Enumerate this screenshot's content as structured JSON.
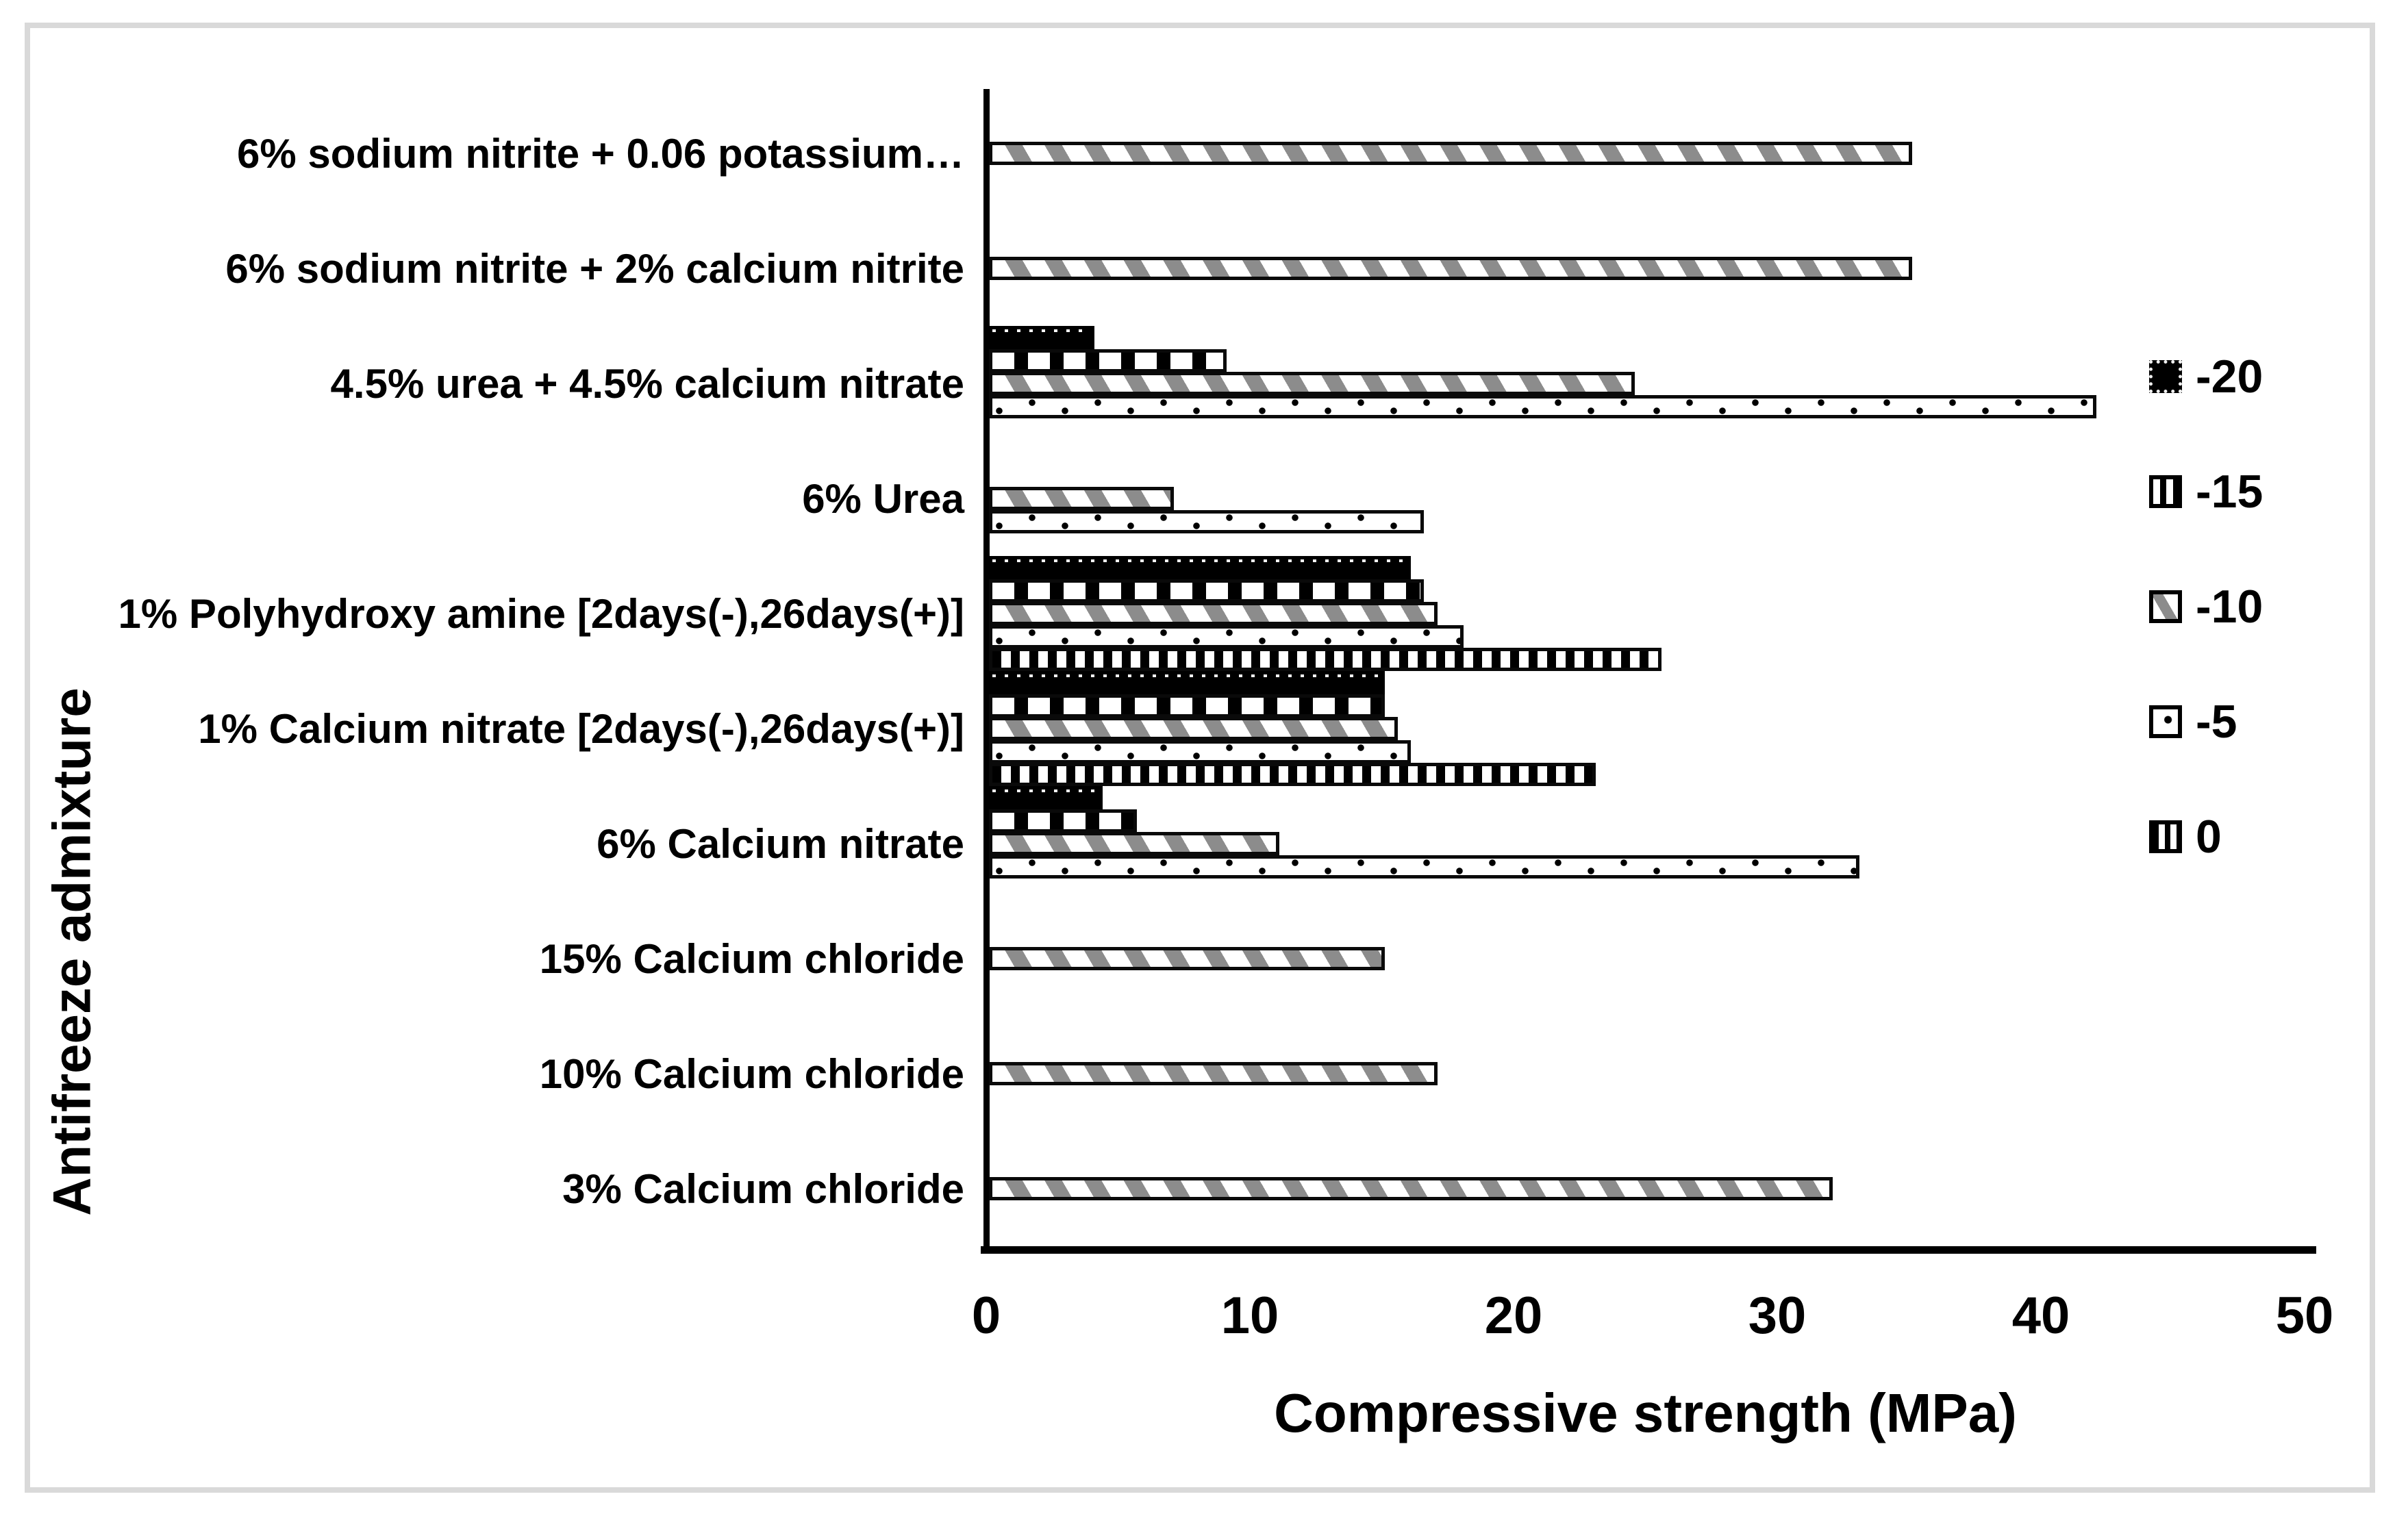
{
  "figure": {
    "background": "#ffffff",
    "border_color": "#d9d9d9",
    "bar_gray": "#8c8c8c",
    "bar_black": "#000000"
  },
  "chart_data": {
    "type": "bar",
    "orientation": "horizontal",
    "title": "",
    "xlabel": "Compressive strength (MPa)",
    "ylabel": "Antifreeze admixture",
    "xlim": [
      0,
      50
    ],
    "x_ticks": [
      0,
      10,
      20,
      30,
      40,
      50
    ],
    "grid": false,
    "legend_position": "right",
    "legend_order_top_to_bottom": [
      "-20",
      "-15",
      "-10",
      "-5",
      "0"
    ],
    "categories": [
      "6% sodium nitrite + 0.06 potassium…",
      "6% sodium nitrite + 2% calcium nitrite",
      "4.5% urea + 4.5% calcium nitrate",
      "6% Urea",
      "1% Polyhydroxy amine [2days(-),26days(+)]",
      "1% Calcium nitrate [2days(-),26days(+)]",
      "6% Calcium nitrate",
      "15% Calcium chloride",
      "10% Calcium chloride",
      "3% Calcium chloride"
    ],
    "series": [
      {
        "name": "-20",
        "pattern": "solid-black",
        "values": [
          null,
          null,
          4,
          null,
          16,
          15,
          4.3,
          null,
          null,
          null
        ]
      },
      {
        "name": "-15",
        "pattern": "stripes-vertical-sparse",
        "values": [
          null,
          null,
          9,
          null,
          16.5,
          15,
          5.6,
          null,
          null,
          null
        ]
      },
      {
        "name": "-10",
        "pattern": "stripes-diagonal-gray",
        "values": [
          35,
          35,
          24.5,
          7,
          17,
          15.5,
          11,
          15,
          17,
          32
        ]
      },
      {
        "name": "-5",
        "pattern": "dots-sparse",
        "values": [
          null,
          null,
          42,
          16.5,
          18,
          16,
          33,
          null,
          null,
          null
        ]
      },
      {
        "name": "0",
        "pattern": "stripes-vertical-dense",
        "values": [
          null,
          null,
          null,
          null,
          25.5,
          23,
          null,
          null,
          null,
          null
        ]
      }
    ]
  }
}
